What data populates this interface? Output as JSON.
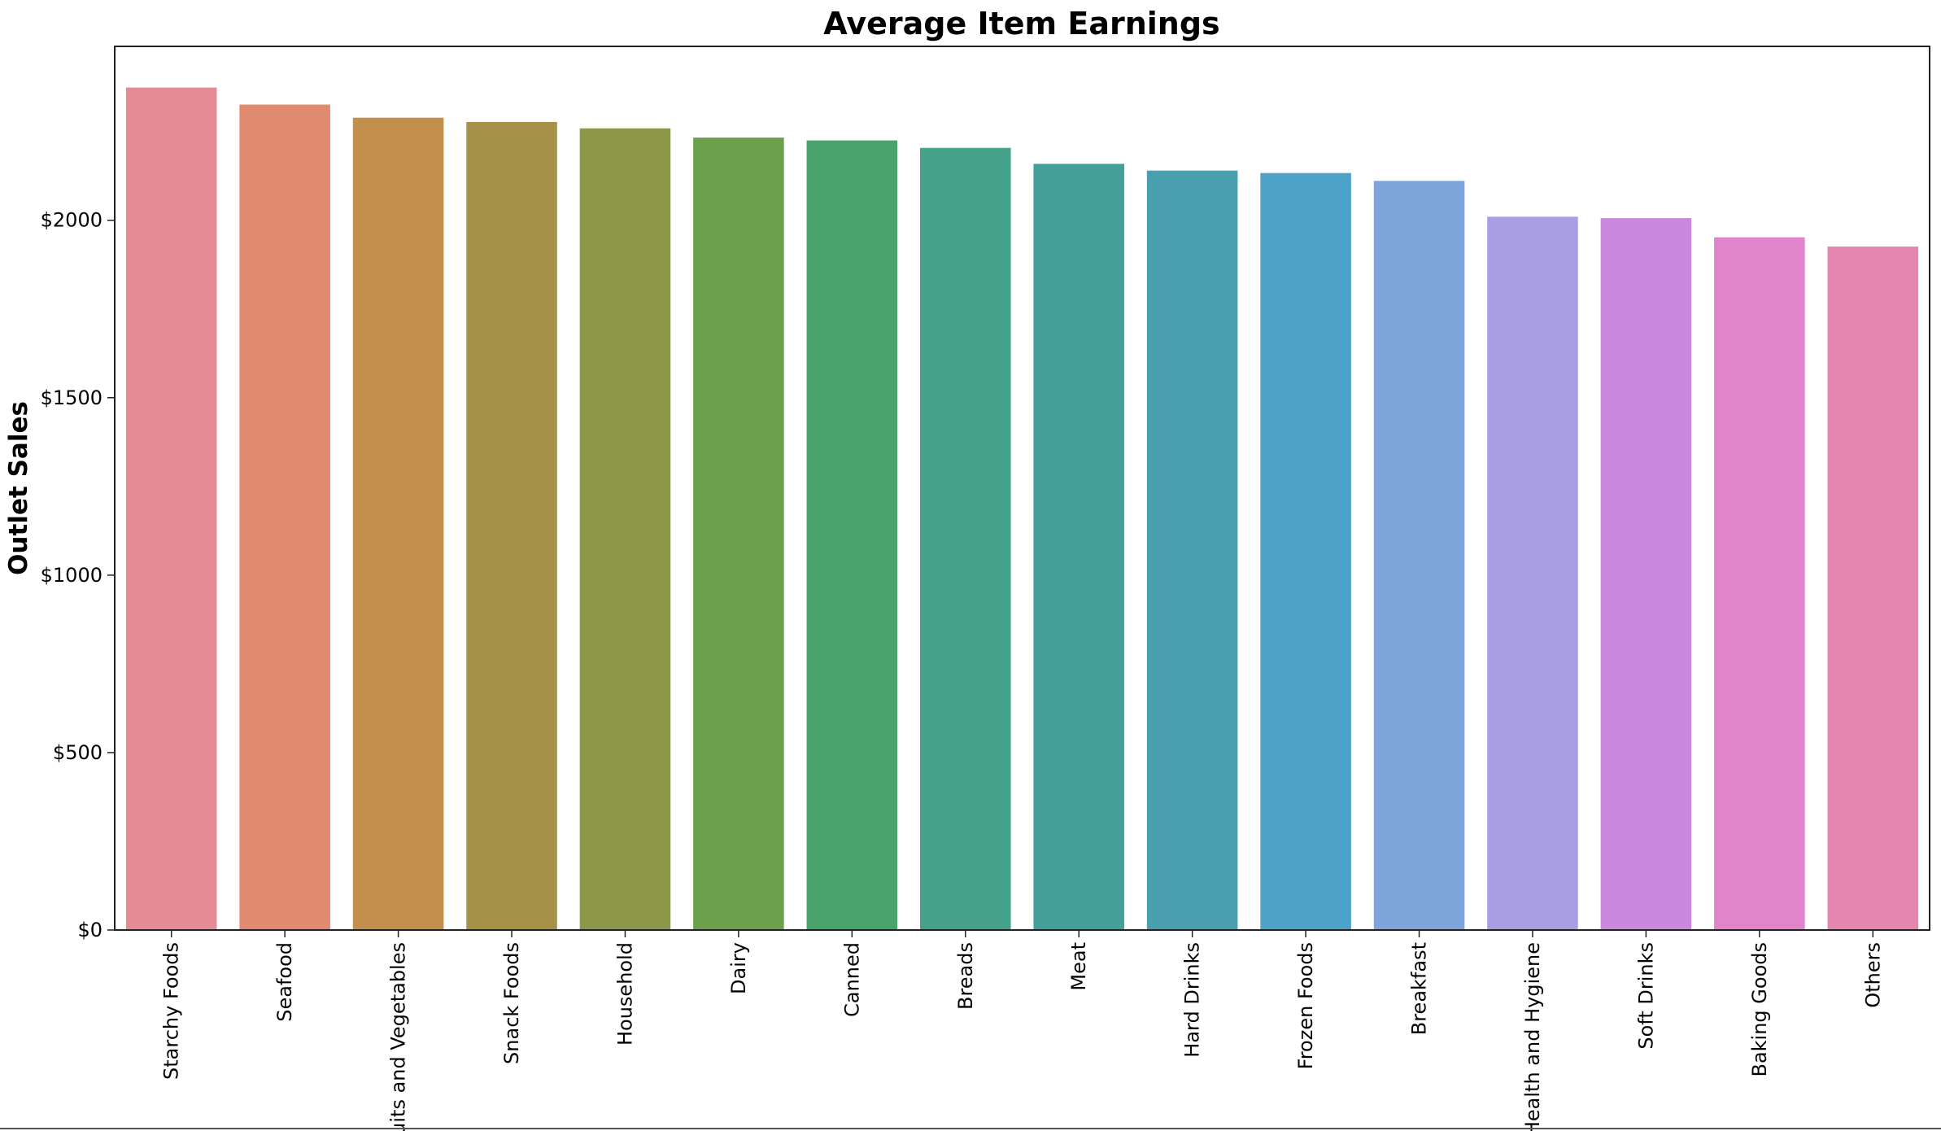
{
  "chart_data": {
    "type": "bar",
    "title": "Average Item Earnings",
    "xlabel": "",
    "ylabel": "Outlet Sales",
    "categories": [
      "Starchy Foods",
      "Seafood",
      "Fruits and Vegetables",
      "Snack Foods",
      "Household",
      "Dairy",
      "Canned",
      "Breads",
      "Meat",
      "Hard Drinks",
      "Frozen Foods",
      "Breakfast",
      "Health and Hygiene",
      "Soft Drinks",
      "Baking Goods",
      "Others"
    ],
    "values": [
      2374,
      2326,
      2289,
      2277,
      2259,
      2233,
      2225,
      2204,
      2159,
      2140,
      2133,
      2111,
      2010,
      2006,
      1952,
      1926
    ],
    "colors": [
      "#e48b96",
      "#e08b6f",
      "#c28f4c",
      "#a69149",
      "#8c9848",
      "#6ca14c",
      "#48a46c",
      "#46a18b",
      "#45a09c",
      "#499fad",
      "#4ca2c8",
      "#7ea4dc",
      "#a99ee3",
      "#cb89de",
      "#e084cc",
      "#e487b0"
    ],
    "yticks": [
      0,
      500,
      1000,
      1500,
      2000
    ],
    "ytick_labels": [
      "$0",
      "$500",
      "$1000",
      "$1500",
      "$2000"
    ],
    "ylim": [
      0,
      2490
    ],
    "grid": false,
    "legend": "none"
  }
}
